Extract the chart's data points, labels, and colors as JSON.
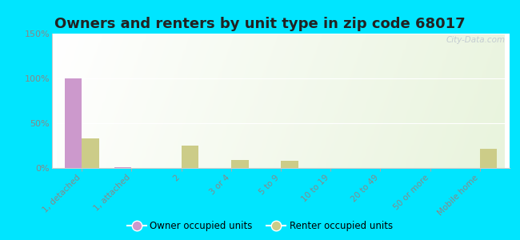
{
  "title": "Owners and renters by unit type in zip code 68017",
  "categories": [
    "1, detached",
    "1, attached",
    "2",
    "3 or 4",
    "5 to 9",
    "10 to 19",
    "20 to 49",
    "50 or more",
    "Mobile home"
  ],
  "owner_values": [
    100,
    1,
    0,
    0,
    0,
    0,
    0,
    0,
    0
  ],
  "renter_values": [
    33,
    0,
    25,
    9,
    8,
    0,
    0,
    0,
    21
  ],
  "owner_color": "#cc99cc",
  "renter_color": "#cccc88",
  "ylim": [
    0,
    150
  ],
  "yticks": [
    0,
    50,
    100,
    150
  ],
  "ytick_labels": [
    "0%",
    "50%",
    "100%",
    "150%"
  ],
  "outer_bg": "#00e5ff",
  "bar_width": 0.35,
  "title_fontsize": 13,
  "watermark": "City-Data.com",
  "grad_top": "#ffffff",
  "grad_bottom_left": "#d8eecc",
  "grid_color": "#e0e8d8",
  "tick_color": "#888888"
}
